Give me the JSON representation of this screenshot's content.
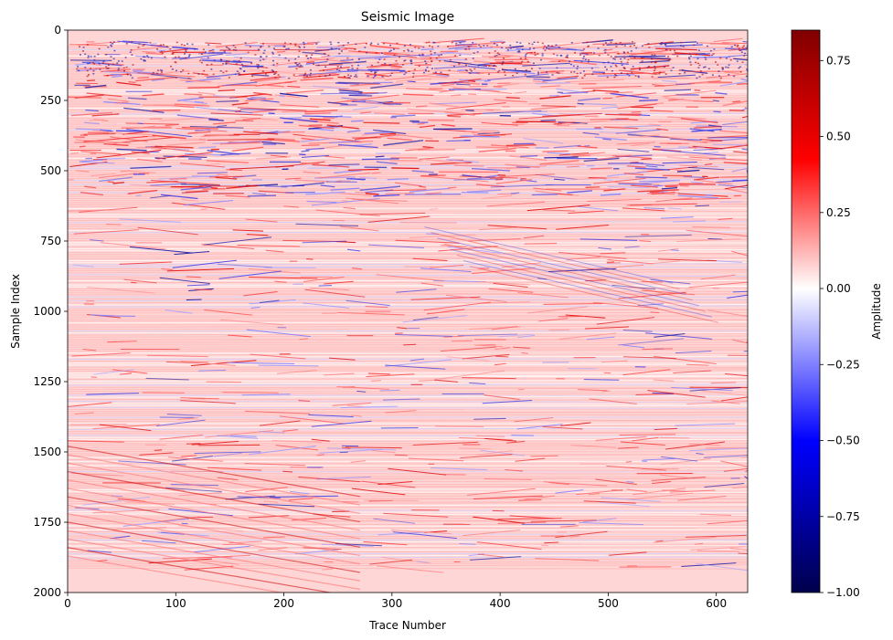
{
  "chart_data": {
    "type": "heatmap",
    "title": "Seismic Image",
    "xlabel": "Trace Number",
    "ylabel": "Sample Index",
    "xlim": [
      0,
      629
    ],
    "ylim": [
      2000,
      0
    ],
    "x_ticks": [
      "0",
      "100",
      "200",
      "300",
      "400",
      "500",
      "600"
    ],
    "x_tick_values": [
      0,
      100,
      200,
      300,
      400,
      500,
      600
    ],
    "y_ticks": [
      "0",
      "250",
      "500",
      "750",
      "1000",
      "1250",
      "1500",
      "1750",
      "2000"
    ],
    "y_tick_values": [
      0,
      250,
      500,
      750,
      1000,
      1250,
      1500,
      1750,
      2000
    ],
    "colormap": "seismic",
    "colorbar": {
      "label": "Amplitude",
      "vmin": -1.0,
      "vmax": 0.85,
      "ticks": [
        "0.75",
        "0.50",
        "0.25",
        "0.00",
        "−0.25",
        "−0.50",
        "−0.75",
        "−1.00"
      ],
      "tick_values": [
        0.75,
        0.5,
        0.25,
        0.0,
        -0.25,
        -0.5,
        -0.75,
        -1.0
      ],
      "colors": [
        "#00004c",
        "#0000ff",
        "#ffffff",
        "#ff0000",
        "#800000"
      ]
    },
    "background_color": "#ffd6d6",
    "data_end_sample": 1920
  }
}
